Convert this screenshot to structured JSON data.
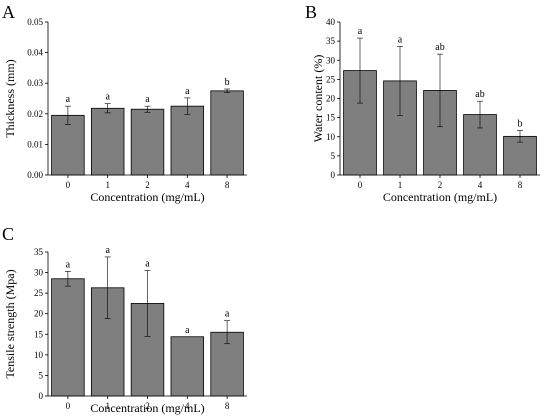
{
  "chart_data": [
    {
      "panel": "A",
      "type": "bar",
      "categories": [
        "0",
        "1",
        "2",
        "4",
        "8"
      ],
      "values": [
        0.0195,
        0.0218,
        0.0215,
        0.0225,
        0.0275
      ],
      "errors": [
        0.003,
        0.0015,
        0.001,
        0.0027,
        0.0006
      ],
      "significance": [
        "a",
        "a",
        "a",
        "a",
        "b"
      ],
      "xlabel": "Concentration (mg/mL)",
      "ylabel": "Thickness (mm)",
      "ylim": [
        0,
        0.05
      ],
      "yticks": [
        "0.00",
        "0.01",
        "0.02",
        "0.03",
        "0.04",
        "0.05"
      ],
      "grid": false
    },
    {
      "panel": "B",
      "type": "bar",
      "categories": [
        "0",
        "1",
        "2",
        "4",
        "8"
      ],
      "values": [
        27.3,
        24.6,
        22.1,
        15.8,
        10.1
      ],
      "errors": [
        8.5,
        9.0,
        9.5,
        3.5,
        1.5
      ],
      "significance": [
        "a",
        "a",
        "ab",
        "ab",
        "b"
      ],
      "xlabel": "Concentration (mg/mL)",
      "ylabel": "Water content (%)",
      "ylim": [
        0,
        40
      ],
      "yticks": [
        "0",
        "5",
        "10",
        "15",
        "20",
        "25",
        "30",
        "35",
        "40"
      ],
      "grid": false
    },
    {
      "panel": "C",
      "type": "bar",
      "categories": [
        "0",
        "1",
        "2",
        "4",
        "8"
      ],
      "values": [
        28.5,
        26.3,
        22.5,
        14.4,
        15.5
      ],
      "errors": [
        1.8,
        7.5,
        8.0,
        0,
        2.8
      ],
      "significance": [
        "a",
        "a",
        "a",
        "a",
        "a"
      ],
      "xlabel": "Concentration (mg/mL)",
      "ylabel": "Tensile strength (Mpa)",
      "ylim": [
        0,
        35
      ],
      "yticks": [
        "0",
        "5",
        "10",
        "15",
        "20",
        "25",
        "30",
        "35"
      ],
      "grid": false
    }
  ]
}
